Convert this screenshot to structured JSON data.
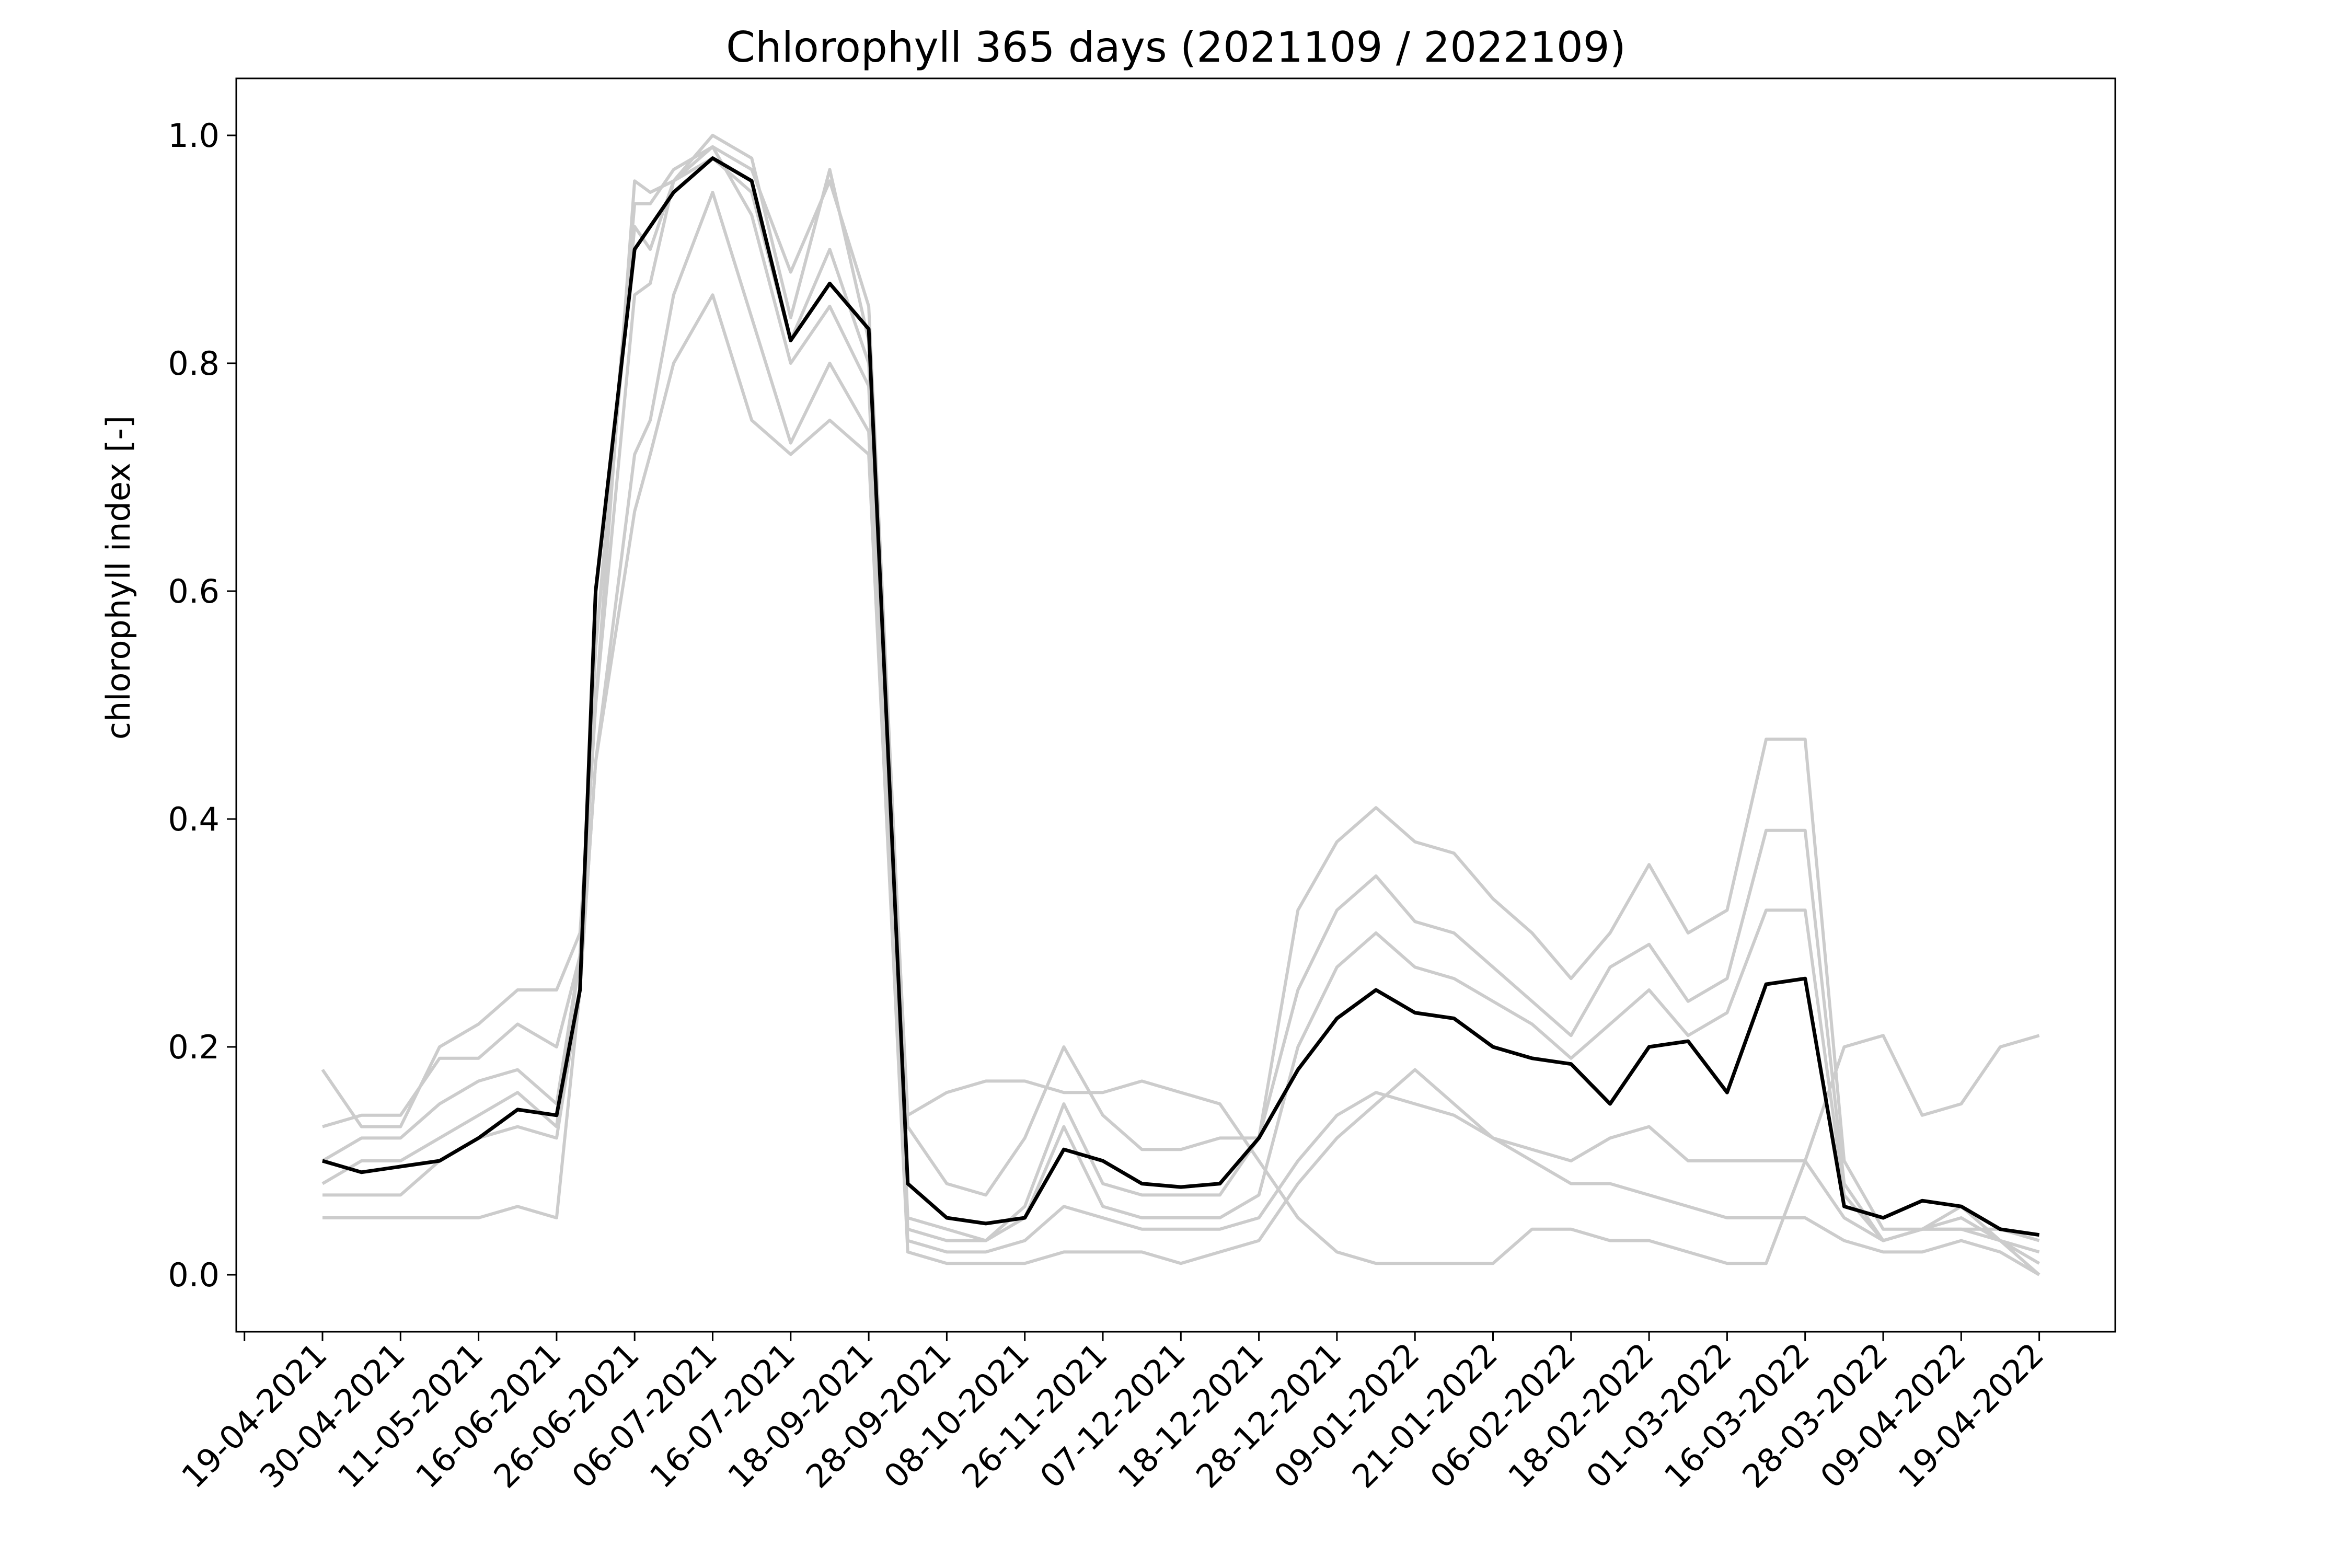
{
  "chart_data": {
    "type": "line",
    "title": "Chlorophyll 365 days (2021109 / 2022109)",
    "xlabel": "",
    "ylabel": "chlorophyll index [-]",
    "ylim": [
      -0.05,
      1.05
    ],
    "yticks": [
      "0.0",
      "0.2",
      "0.4",
      "0.6",
      "0.8",
      "1.0"
    ],
    "categories": [
      "19-04-2021",
      "30-04-2021",
      "11-05-2021",
      "16-06-2021",
      "26-06-2021",
      "06-07-2021",
      "16-07-2021",
      "18-09-2021",
      "28-09-2021",
      "08-10-2021",
      "26-11-2021",
      "07-12-2021",
      "18-12-2021",
      "28-12-2021",
      "09-01-2022",
      "21-01-2022",
      "06-02-2022",
      "18-02-2022",
      "01-03-2022",
      "16-03-2022",
      "28-03-2022",
      "09-04-2022",
      "19-04-2022"
    ],
    "grid": false,
    "legend": "none",
    "colors": {
      "main": "#000000",
      "years": "#cccccc"
    },
    "x": [
      0,
      0.5,
      1,
      1.5,
      2,
      2.5,
      3,
      3.3,
      3.5,
      4,
      4.2,
      4.5,
      5,
      5.5,
      6,
      6.5,
      7,
      7.5,
      8,
      8.5,
      9,
      9.5,
      10,
      10.5,
      11,
      11.5,
      12,
      12.5,
      13,
      13.5,
      14,
      14.5,
      15,
      15.5,
      16,
      16.5,
      17,
      17.5,
      18,
      18.5,
      19,
      19.5,
      20,
      20.5,
      21,
      21.5,
      22
    ],
    "series": [
      {
        "values": [
          0.18,
          0.13,
          0.13,
          0.2,
          0.22,
          0.25,
          0.25,
          0.3,
          0.5,
          0.96,
          0.95,
          0.96,
          1.0,
          0.98,
          0.84,
          0.97,
          0.82,
          0.14,
          0.16,
          0.17,
          0.17,
          0.16,
          0.16,
          0.17,
          0.16,
          0.15,
          0.1,
          0.05,
          0.02,
          0.01,
          0.01,
          0.01,
          0.01,
          0.04,
          0.04,
          0.03,
          0.03,
          0.02,
          0.01,
          0.01,
          0.1,
          0.2,
          0.21,
          0.14,
          0.15,
          0.2,
          0.21
        ]
      },
      {
        "values": [
          0.13,
          0.14,
          0.14,
          0.19,
          0.19,
          0.22,
          0.2,
          0.28,
          0.55,
          0.94,
          0.94,
          0.97,
          0.99,
          0.97,
          0.88,
          0.96,
          0.85,
          0.13,
          0.08,
          0.07,
          0.12,
          0.2,
          0.14,
          0.11,
          0.11,
          0.12,
          0.12,
          0.32,
          0.38,
          0.41,
          0.38,
          0.37,
          0.33,
          0.3,
          0.26,
          0.3,
          0.36,
          0.3,
          0.32,
          0.47,
          0.47,
          0.1,
          0.04,
          0.04,
          0.04,
          0.04,
          0.03
        ]
      },
      {
        "values": [
          0.1,
          0.12,
          0.12,
          0.15,
          0.17,
          0.18,
          0.15,
          0.28,
          0.55,
          0.92,
          0.9,
          0.96,
          0.98,
          0.95,
          0.82,
          0.9,
          0.8,
          0.05,
          0.04,
          0.03,
          0.06,
          0.15,
          0.08,
          0.07,
          0.07,
          0.07,
          0.12,
          0.25,
          0.32,
          0.35,
          0.31,
          0.3,
          0.27,
          0.24,
          0.21,
          0.27,
          0.29,
          0.24,
          0.26,
          0.39,
          0.39,
          0.08,
          0.03,
          0.04,
          0.05,
          0.03,
          0.02
        ]
      },
      {
        "values": [
          0.08,
          0.1,
          0.1,
          0.12,
          0.14,
          0.16,
          0.13,
          0.28,
          0.5,
          0.86,
          0.87,
          0.96,
          0.99,
          0.93,
          0.8,
          0.85,
          0.78,
          0.04,
          0.03,
          0.03,
          0.05,
          0.13,
          0.06,
          0.05,
          0.05,
          0.05,
          0.07,
          0.2,
          0.27,
          0.3,
          0.27,
          0.26,
          0.24,
          0.22,
          0.19,
          0.22,
          0.25,
          0.21,
          0.23,
          0.32,
          0.32,
          0.07,
          0.03,
          0.04,
          0.06,
          0.03,
          0.01
        ]
      },
      {
        "values": [
          0.07,
          0.07,
          0.07,
          0.1,
          0.12,
          0.13,
          0.12,
          0.25,
          0.45,
          0.72,
          0.75,
          0.86,
          0.95,
          0.84,
          0.73,
          0.8,
          0.74,
          0.03,
          0.02,
          0.02,
          0.03,
          0.06,
          0.05,
          0.04,
          0.04,
          0.04,
          0.05,
          0.1,
          0.14,
          0.16,
          0.15,
          0.14,
          0.12,
          0.11,
          0.1,
          0.12,
          0.13,
          0.1,
          0.1,
          0.1,
          0.1,
          0.05,
          0.03,
          0.04,
          0.04,
          0.03,
          0.0
        ]
      },
      {
        "values": [
          0.05,
          0.05,
          0.05,
          0.05,
          0.05,
          0.06,
          0.05,
          0.25,
          0.45,
          0.67,
          0.72,
          0.8,
          0.86,
          0.75,
          0.72,
          0.75,
          0.72,
          0.02,
          0.01,
          0.01,
          0.01,
          0.02,
          0.02,
          0.02,
          0.01,
          0.02,
          0.03,
          0.08,
          0.12,
          0.15,
          0.18,
          0.15,
          0.12,
          0.1,
          0.08,
          0.08,
          0.07,
          0.06,
          0.05,
          0.05,
          0.05,
          0.03,
          0.02,
          0.02,
          0.03,
          0.02,
          0.0
        ]
      },
      {
        "values": [
          0.1,
          0.09,
          0.095,
          0.1,
          0.12,
          0.145,
          0.14,
          0.25,
          0.6,
          0.9,
          0.92,
          0.95,
          0.98,
          0.96,
          0.82,
          0.87,
          0.83,
          0.08,
          0.05,
          0.045,
          0.05,
          0.11,
          0.1,
          0.08,
          0.077,
          0.08,
          0.12,
          0.18,
          0.225,
          0.25,
          0.23,
          0.225,
          0.2,
          0.19,
          0.185,
          0.15,
          0.2,
          0.205,
          0.16,
          0.255,
          0.26,
          0.06,
          0.05,
          0.065,
          0.06,
          0.04,
          0.035
        ]
      }
    ]
  }
}
